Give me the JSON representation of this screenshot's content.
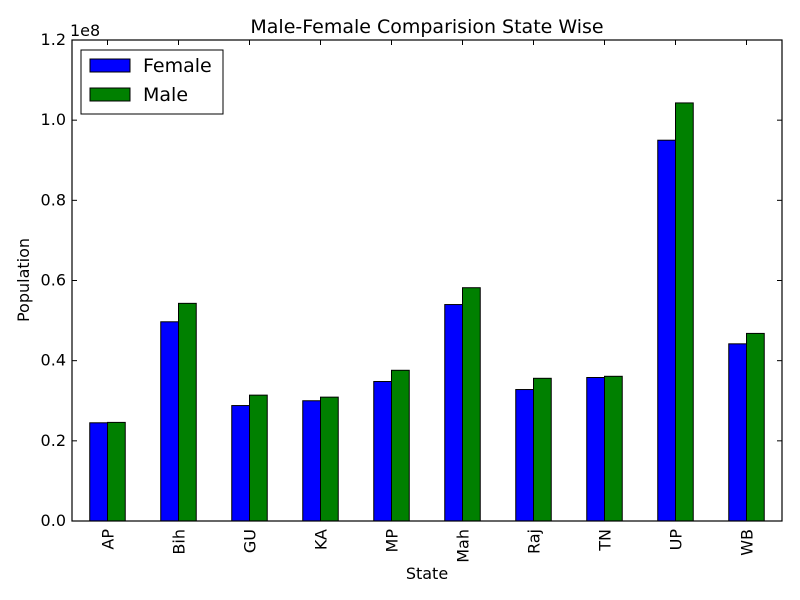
{
  "chart_data": {
    "type": "bar",
    "title": "Male-Female Comparision State Wise",
    "xlabel": "State",
    "ylabel": "Population",
    "y_offset_label": "1e8",
    "ylim": [
      0,
      1.2
    ],
    "y_ticks": [
      "0.0",
      "0.2",
      "0.4",
      "0.6",
      "0.8",
      "1.0",
      "1.2"
    ],
    "legend_position": "top-left",
    "grid": false,
    "categories": [
      "AP",
      "Bih",
      "GU",
      "KA",
      "MP",
      "Mah",
      "Raj",
      "TN",
      "UP",
      "WB"
    ],
    "series": [
      {
        "name": "Female",
        "color": "#0000ff",
        "values": [
          0.245,
          0.497,
          0.288,
          0.3,
          0.348,
          0.54,
          0.328,
          0.358,
          0.95,
          0.442
        ]
      },
      {
        "name": "Male",
        "color": "#008000",
        "values": [
          0.246,
          0.543,
          0.314,
          0.309,
          0.376,
          0.582,
          0.356,
          0.361,
          1.043,
          0.468
        ]
      }
    ]
  }
}
